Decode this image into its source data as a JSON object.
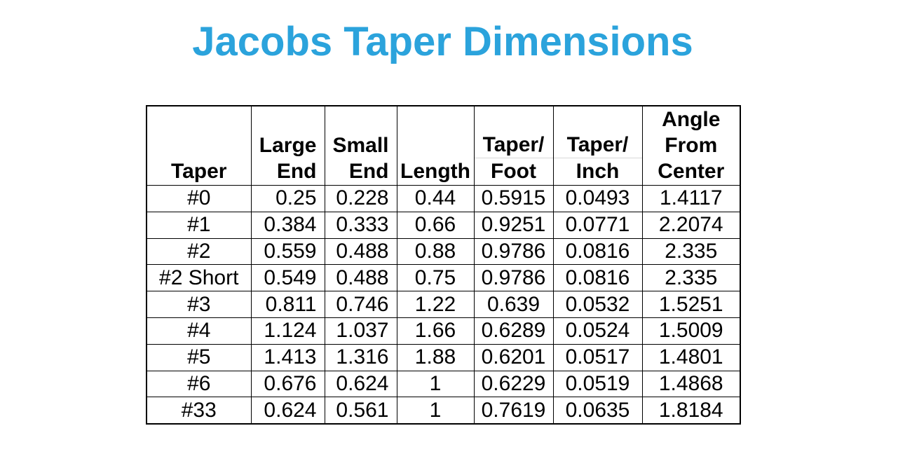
{
  "title": "Jacobs Taper Dimensions",
  "colors": {
    "title": "#2BA3DC",
    "table_border": "#000000",
    "header_divider": "#D8D8D8",
    "background": "#FFFFFF",
    "text": "#000000"
  },
  "chart_data": {
    "type": "table",
    "title": "Jacobs Taper Dimensions",
    "columns": [
      {
        "id": "taper",
        "label": "Taper",
        "lines": [
          "Taper"
        ],
        "divided": false
      },
      {
        "id": "large-end",
        "label": "Large End",
        "lines": [
          "Large",
          "End"
        ],
        "divided": false
      },
      {
        "id": "small-end",
        "label": "Small End",
        "lines": [
          "Small",
          "End"
        ],
        "divided": false
      },
      {
        "id": "length",
        "label": "Length",
        "lines": [
          "Length"
        ],
        "divided": false
      },
      {
        "id": "taper-per-foot",
        "label": "Taper/Foot",
        "lines": [
          "Taper/",
          "Foot"
        ],
        "divided": true
      },
      {
        "id": "taper-per-inch",
        "label": "Taper/Inch",
        "lines": [
          "Taper/",
          "Inch"
        ],
        "divided": true
      },
      {
        "id": "angle-from-center",
        "label": "Angle From Center",
        "lines": [
          "Angle",
          "From",
          "Center"
        ],
        "divided": false
      }
    ],
    "rows": [
      [
        "#0",
        "0.25",
        "0.228",
        "0.44",
        "0.5915",
        "0.0493",
        "1.4117"
      ],
      [
        "#1",
        "0.384",
        "0.333",
        "0.66",
        "0.9251",
        "0.0771",
        "2.2074"
      ],
      [
        "#2",
        "0.559",
        "0.488",
        "0.88",
        "0.9786",
        "0.0816",
        "2.335"
      ],
      [
        "#2 Short",
        "0.549",
        "0.488",
        "0.75",
        "0.9786",
        "0.0816",
        "2.335"
      ],
      [
        "#3",
        "0.811",
        "0.746",
        "1.22",
        "0.639",
        "0.0532",
        "1.5251"
      ],
      [
        "#4",
        "1.124",
        "1.037",
        "1.66",
        "0.6289",
        "0.0524",
        "1.5009"
      ],
      [
        "#5",
        "1.413",
        "1.316",
        "1.88",
        "0.6201",
        "0.0517",
        "1.4801"
      ],
      [
        "#6",
        "0.676",
        "0.624",
        "1",
        "0.6229",
        "0.0519",
        "1.4868"
      ],
      [
        "#33",
        "0.624",
        "0.561",
        "1",
        "0.7619",
        "0.0635",
        "1.8184"
      ]
    ]
  }
}
